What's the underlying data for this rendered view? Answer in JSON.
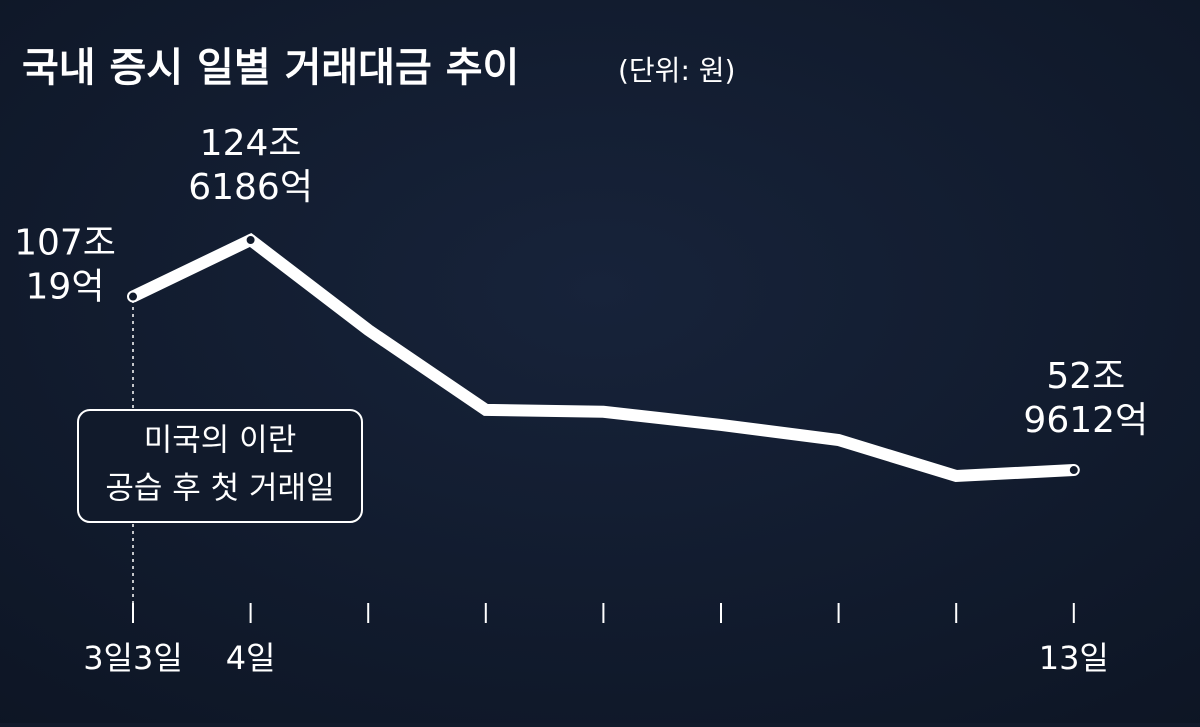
{
  "chart_data": {
    "type": "line",
    "title": "국내 증시 일별 거래대금 추이",
    "subtitle": "(단위: 원)",
    "categories": [
      "3일3일",
      "4일",
      null,
      null,
      null,
      null,
      null,
      null,
      "13일"
    ],
    "series": [
      {
        "name": "거래대금",
        "color": "#ffffff",
        "values": [
          1070019,
          1246186,
          966000,
          717000,
          711000,
          670000,
          623000,
          511000,
          529612
        ]
      }
    ],
    "value_labels": [
      [
        "107조",
        "19억"
      ],
      [
        "124조",
        "6186억"
      ],
      null,
      null,
      null,
      null,
      null,
      null,
      [
        "52조",
        "9612억"
      ]
    ],
    "annotation": [
      "미국의 이란",
      "공습 후 첫 거래일"
    ]
  }
}
